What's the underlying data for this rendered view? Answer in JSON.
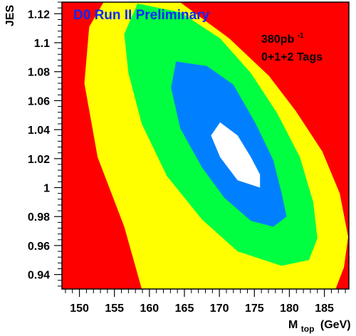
{
  "chart_data": {
    "type": "contour",
    "title": "D0 Run II Preliminary",
    "annotations": {
      "luminosity_value": "380pb",
      "luminosity_exp": "-1",
      "tags": "0+1+2 Tags"
    },
    "xlabel": {
      "main": "M",
      "sub": "top",
      "unit": "(GeV)"
    },
    "ylabel": "JES",
    "xlim": [
      147.5,
      188.5
    ],
    "ylim": [
      0.93,
      1.128
    ],
    "xticks": [
      150,
      155,
      160,
      165,
      170,
      175,
      180,
      185
    ],
    "xtick_labels": [
      "150",
      "155",
      "160",
      "165",
      "170",
      "175",
      "180",
      "185"
    ],
    "yticks": [
      0.94,
      0.96,
      0.98,
      1.0,
      1.02,
      1.04,
      1.06,
      1.08,
      1.1,
      1.12
    ],
    "ytick_labels": [
      "0.94",
      "0.96",
      "0.98",
      "1",
      "1.02",
      "1.04",
      "1.06",
      "1.08",
      "1.1",
      "1.12"
    ],
    "background_color": "#ff0000",
    "levels": [
      {
        "color": "#ffff00",
        "points": [
          [
            153.7,
            1.13
          ],
          [
            163.8,
            1.13
          ],
          [
            171.4,
            1.103
          ],
          [
            177.1,
            1.077
          ],
          [
            180.9,
            1.053
          ],
          [
            184.7,
            1.025
          ],
          [
            187.2,
            0.996
          ],
          [
            188.4,
            0.966
          ],
          [
            187.8,
            0.945
          ],
          [
            186.6,
            0.93
          ],
          [
            158.9,
            0.93
          ],
          [
            156.4,
            0.973
          ],
          [
            152.6,
            1.021
          ],
          [
            150.7,
            1.072
          ],
          [
            151.4,
            1.111
          ]
        ]
      },
      {
        "color": "#00ff40",
        "points": [
          [
            158.3,
            1.127
          ],
          [
            164.4,
            1.121
          ],
          [
            170.1,
            1.103
          ],
          [
            174.5,
            1.079
          ],
          [
            178.3,
            1.051
          ],
          [
            181.5,
            1.021
          ],
          [
            183.4,
            0.99
          ],
          [
            184.0,
            0.965
          ],
          [
            182.8,
            0.95
          ],
          [
            178.9,
            0.946
          ],
          [
            172.6,
            0.956
          ],
          [
            167.5,
            0.978
          ],
          [
            162.5,
            1.008
          ],
          [
            158.9,
            1.044
          ],
          [
            157.0,
            1.079
          ],
          [
            156.4,
            1.106
          ]
        ]
      },
      {
        "color": "#0080ff",
        "points": [
          [
            163.8,
            1.087
          ],
          [
            168.2,
            1.084
          ],
          [
            172.0,
            1.071
          ],
          [
            175.2,
            1.044
          ],
          [
            177.7,
            1.019
          ],
          [
            178.9,
            0.996
          ],
          [
            179.6,
            0.98
          ],
          [
            177.7,
            0.973
          ],
          [
            174.5,
            0.977
          ],
          [
            170.7,
            0.993
          ],
          [
            167.5,
            1.014
          ],
          [
            164.4,
            1.041
          ],
          [
            163.1,
            1.069
          ]
        ]
      },
      {
        "color": "#ffffff",
        "points": [
          [
            170.1,
            1.045
          ],
          [
            172.6,
            1.036
          ],
          [
            174.5,
            1.021
          ],
          [
            175.8,
            1.009
          ],
          [
            175.8,
            1.0
          ],
          [
            172.6,
            1.005
          ],
          [
            170.1,
            1.021
          ],
          [
            168.8,
            1.036
          ]
        ]
      }
    ]
  }
}
